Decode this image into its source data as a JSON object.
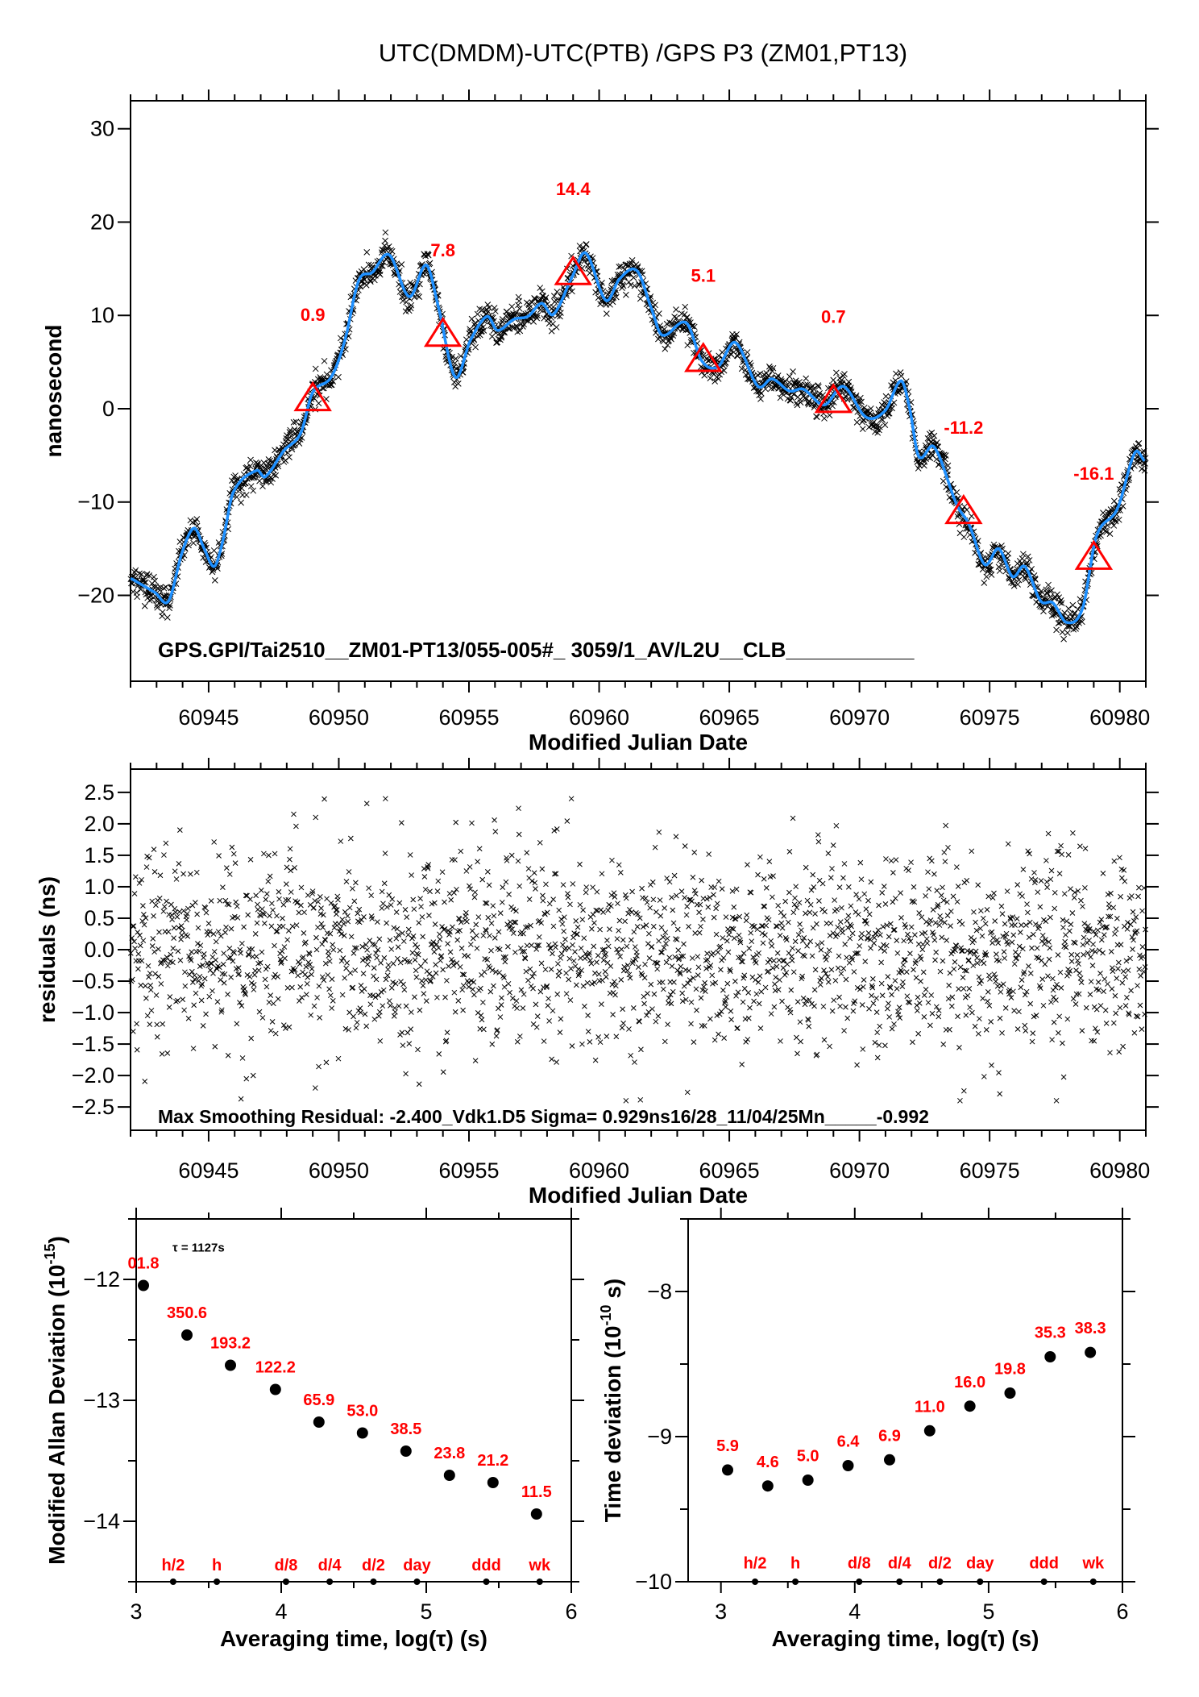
{
  "title": "UTC(DMDM)-UTC(PTB)  /GPS  P3  (ZM01,PT13)",
  "colors": {
    "smoothed_line": "#1e90ff",
    "marker": "#ff0000",
    "label": "#ff0000",
    "points": "#000000"
  },
  "chart_data": [
    {
      "type": "line",
      "ylabel": "nanosecond",
      "xlabel": "Modified Julian Date",
      "xlim": [
        60942.0,
        60981.0
      ],
      "ylim": [
        -29.2,
        33.0
      ],
      "xticks": [
        60945,
        60950,
        60955,
        60960,
        60965,
        60970,
        60975,
        60980
      ],
      "xtick_labels": [
        "60945",
        "60950",
        "60955",
        "60960",
        "60965",
        "60970",
        "60975",
        "60980"
      ],
      "yticks": [
        -20,
        -10,
        0,
        10,
        20,
        30
      ],
      "ytick_labels": [
        "−20",
        "−10",
        "0",
        "10",
        "20",
        "30"
      ],
      "grid": false,
      "smoothed": {
        "mjd": [
          60942.03,
          60942.94,
          60943.46,
          60943.98,
          60944.44,
          60944.83,
          60945.22,
          60945.55,
          60945.94,
          60946.85,
          60947.17,
          60947.89,
          60948.54,
          60948.99,
          60949.71,
          60950.23,
          60950.76,
          60951.28,
          60951.93,
          60952.71,
          60953.36,
          60953.81,
          60954.47,
          60955.05,
          60955.7,
          60956.09,
          60956.74,
          60957.27,
          60957.79,
          60958.24,
          60958.96,
          60959.48,
          60960.26,
          60960.78,
          60961.45,
          60962.0,
          60962.41,
          60963.35,
          60963.95,
          60964.56,
          60965.23,
          60966.1,
          60966.64,
          60967.31,
          60967.84,
          60968.65,
          60969.38,
          60970.25,
          60970.99,
          60971.6,
          60971.93,
          60972.27,
          60972.87,
          60973.74,
          60974.21,
          60974.81,
          60975.35,
          60975.88,
          60976.35,
          60976.96,
          60977.43,
          60977.96,
          60978.57,
          60979.1,
          60979.91,
          60980.58,
          60980.95
        ],
        "ns": [
          -18.2,
          -19.7,
          -20.6,
          -15.4,
          -12.8,
          -15.0,
          -16.9,
          -14.1,
          -9.0,
          -6.6,
          -7.3,
          -4.5,
          -2.6,
          1.7,
          3.4,
          7.3,
          13.7,
          14.6,
          16.5,
          12.0,
          15.4,
          11.1,
          3.4,
          7.3,
          9.9,
          8.4,
          9.6,
          9.9,
          11.3,
          10.1,
          14.1,
          16.7,
          11.6,
          13.9,
          14.8,
          10.8,
          7.9,
          9.2,
          5.1,
          4.5,
          7.1,
          2.4,
          3.2,
          1.9,
          2.1,
          0.4,
          2.4,
          -0.9,
          -0.2,
          3.0,
          0.0,
          -5.1,
          -4.1,
          -10.3,
          -12.4,
          -16.7,
          -15.0,
          -18.0,
          -16.9,
          -20.6,
          -20.8,
          -22.9,
          -21.4,
          -13.7,
          -10.7,
          -4.7,
          -5.6
        ]
      },
      "markers": {
        "mjd": [
          60949,
          60954,
          60959,
          60964,
          60969,
          60974,
          60979
        ],
        "values": [
          0.9,
          7.8,
          14.4,
          5.1,
          0.7,
          -11.2,
          -16.1
        ],
        "labels": [
          "0.9",
          "7.8",
          "14.4",
          "5.1",
          "0.7",
          "-11.2",
          "-16.1"
        ]
      },
      "annotation": "GPS.GPI/Tai2510__ZM01-PT13/055-005#_  3059/1_AV/L2U__CLB___________"
    },
    {
      "type": "scatter",
      "ylabel": "residuals (ns)",
      "xlabel": "Modified Julian Date",
      "xlim": [
        60942.0,
        60981.0
      ],
      "ylim": [
        -2.87,
        2.87
      ],
      "xticks": [
        60945,
        60950,
        60955,
        60960,
        60965,
        60970,
        60975,
        60980
      ],
      "xtick_labels": [
        "60945",
        "60950",
        "60955",
        "60960",
        "60965",
        "60970",
        "60975",
        "60980"
      ],
      "yticks": [
        -2.5,
        -2.0,
        -1.5,
        -1.0,
        -0.5,
        0.0,
        0.5,
        1.0,
        1.5,
        2.0,
        2.5
      ],
      "ytick_labels": [
        "−2.5",
        "−2.0",
        "−1.5",
        "−1.0",
        "−0.5",
        "0.0",
        "0.5",
        "1.0",
        "1.5",
        "2.0",
        "2.5"
      ],
      "sigma_ns": 0.929,
      "max_residual_ns": -2.4,
      "grid": false,
      "annotation": "Max Smoothing Residual: -2.400_Vdk1.D5  Sigma= 0.929ns16/28_11/04/25Mn_____-0.992"
    },
    {
      "type": "scatter",
      "ylabel_prefix": "Modified Allan Deviation (10",
      "ylabel_sup": "-15",
      "ylabel_suffix": ")",
      "xlabel": "Averaging time, log(τ) (s)",
      "xlim": [
        3,
        6
      ],
      "ylim": [
        -14.5,
        -11.5
      ],
      "xticks": [
        3,
        4,
        5,
        6
      ],
      "xtick_labels": [
        "3",
        "4",
        "5",
        "6"
      ],
      "yticks": [
        -14,
        -13,
        -12
      ],
      "ytick_labels": [
        "−14",
        "−13",
        "−12"
      ],
      "tau_label": "τ = 1127s",
      "x": [
        3.05,
        3.35,
        3.65,
        3.96,
        4.26,
        4.56,
        4.86,
        5.16,
        5.46,
        5.76
      ],
      "y": [
        -12.05,
        -12.46,
        -12.71,
        -12.91,
        -13.18,
        -13.27,
        -13.42,
        -13.62,
        -13.68,
        -13.94
      ],
      "point_labels": [
        "01.8",
        "350.6",
        "193.2",
        "122.2",
        "65.9",
        "53.0",
        "38.5",
        "23.8",
        "21.2",
        "11.5"
      ],
      "period_markers": {
        "x": [
          3.255,
          3.556,
          4.033,
          4.334,
          4.636,
          4.936,
          5.414,
          5.782
        ],
        "labels": [
          "h/2",
          "h",
          "d/8",
          "d/4",
          "d/2",
          "day",
          "ddd",
          "wk"
        ]
      }
    },
    {
      "type": "scatter",
      "ylabel_prefix": "Time deviation (10",
      "ylabel_sup": "-10",
      "ylabel_suffix": " s)",
      "xlabel": "Averaging time, log(τ) (s)",
      "xlim": [
        2.755,
        6
      ],
      "ylim": [
        -10,
        -7.5
      ],
      "xticks": [
        3,
        4,
        5,
        6
      ],
      "xtick_labels": [
        "3",
        "4",
        "5",
        "6"
      ],
      "yticks": [
        -10,
        -9,
        -8
      ],
      "ytick_labels": [
        "−10",
        "−9",
        "−8"
      ],
      "x": [
        3.05,
        3.35,
        3.65,
        3.95,
        4.26,
        4.56,
        4.86,
        5.16,
        5.46,
        5.76
      ],
      "y": [
        -9.23,
        -9.34,
        -9.3,
        -9.2,
        -9.16,
        -8.96,
        -8.79,
        -8.7,
        -8.45,
        -8.42
      ],
      "point_labels": [
        "5.9",
        "4.6",
        "5.0",
        "6.4",
        "6.9",
        "11.0",
        "16.0",
        "19.8",
        "35.3",
        "38.3"
      ],
      "period_markers": {
        "x": [
          3.255,
          3.556,
          4.033,
          4.334,
          4.636,
          4.936,
          5.414,
          5.782
        ],
        "labels": [
          "h/2",
          "h",
          "d/8",
          "d/4",
          "d/2",
          "day",
          "ddd",
          "wk"
        ]
      }
    }
  ]
}
